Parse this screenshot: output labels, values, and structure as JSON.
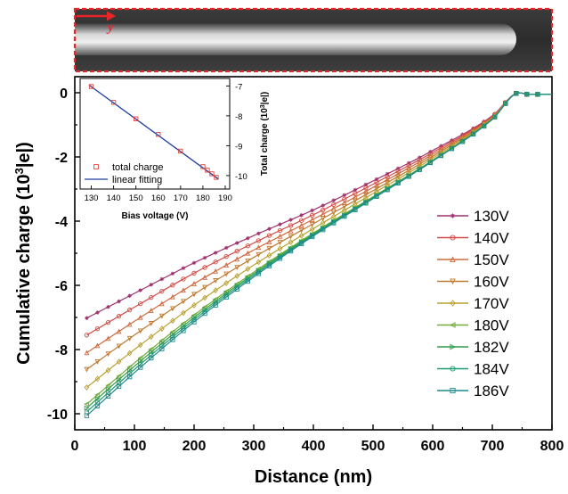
{
  "figure": {
    "image_label": "y",
    "colors": {
      "image_border": "#e8262a",
      "arrow": "#e8262a"
    }
  },
  "chart_data": [
    {
      "type": "line",
      "title": "",
      "xlabel": "Distance (nm)",
      "ylabel": "Cumulative charge (10³|e|)",
      "ylabel_parts": {
        "main": "Cumulative charge (10",
        "sup": "3",
        "tail": "|e|)"
      },
      "xlim": [
        0,
        800
      ],
      "ylim": [
        -10.5,
        0.5
      ],
      "xticks": [
        0,
        100,
        200,
        300,
        400,
        500,
        600,
        700,
        800
      ],
      "yticks": [
        0,
        -2,
        -4,
        -6,
        -8,
        -10
      ],
      "x": [
        20,
        100,
        200,
        300,
        400,
        500,
        600,
        700,
        745,
        760,
        800
      ],
      "grid": false,
      "legend_position": "right",
      "series": [
        {
          "name": "130V",
          "color": "#a0306e",
          "marker": "star",
          "values": [
            -7.02,
            -6.25,
            -5.3,
            -4.45,
            -3.65,
            -2.75,
            -1.8,
            -0.72,
            0.0,
            -0.05,
            -0.05
          ]
        },
        {
          "name": "140V",
          "color": "#d14a45",
          "marker": "circle",
          "values": [
            -7.55,
            -6.68,
            -5.62,
            -4.68,
            -3.8,
            -2.85,
            -1.86,
            -0.74,
            0.0,
            -0.05,
            -0.05
          ]
        },
        {
          "name": "150V",
          "color": "#d2693c",
          "marker": "triangle-up",
          "values": [
            -8.1,
            -7.12,
            -5.95,
            -4.9,
            -3.94,
            -2.95,
            -1.92,
            -0.76,
            0.0,
            -0.05,
            -0.05
          ]
        },
        {
          "name": "160V",
          "color": "#c07a2f",
          "marker": "triangle-down",
          "values": [
            -8.62,
            -7.55,
            -6.28,
            -5.13,
            -4.08,
            -3.05,
            -1.98,
            -0.78,
            0.0,
            -0.05,
            -0.05
          ]
        },
        {
          "name": "170V",
          "color": "#b8a02e",
          "marker": "diamond",
          "values": [
            -9.18,
            -8.0,
            -6.62,
            -5.37,
            -4.23,
            -3.14,
            -2.04,
            -0.8,
            0.0,
            -0.05,
            -0.05
          ]
        },
        {
          "name": "180V",
          "color": "#72ac3a",
          "marker": "triangle-left",
          "values": [
            -9.7,
            -8.42,
            -6.93,
            -5.59,
            -4.37,
            -3.24,
            -2.1,
            -0.82,
            0.0,
            -0.05,
            -0.05
          ]
        },
        {
          "name": "182V",
          "color": "#2f9e4c",
          "marker": "triangle-right",
          "values": [
            -9.82,
            -8.52,
            -7.0,
            -5.64,
            -4.4,
            -3.26,
            -2.11,
            -0.82,
            0.0,
            -0.05,
            -0.05
          ]
        },
        {
          "name": "184V",
          "color": "#1f9a73",
          "marker": "hexagon",
          "values": [
            -9.94,
            -8.62,
            -7.07,
            -5.69,
            -4.43,
            -3.28,
            -2.12,
            -0.83,
            0.0,
            -0.05,
            -0.05
          ]
        },
        {
          "name": "186V",
          "color": "#1c8a8e",
          "marker": "square",
          "values": [
            -10.06,
            -8.72,
            -7.14,
            -5.74,
            -4.46,
            -3.3,
            -2.13,
            -0.83,
            0.0,
            -0.05,
            -0.05
          ]
        }
      ]
    },
    {
      "type": "scatter",
      "title": "",
      "xlabel": "Bias voltage (V)",
      "ylabel": "Total charge (10³|e|)",
      "ylabel_parts": {
        "main": "Total charge (10",
        "sup": "3",
        "tail": "|e|)"
      },
      "xlim": [
        125,
        192
      ],
      "ylim": [
        -10.45,
        -6.75
      ],
      "xticks": [
        130,
        140,
        150,
        160,
        170,
        180,
        190
      ],
      "yticks": [
        -7,
        -8,
        -9,
        -10
      ],
      "grid": false,
      "legend_position": "bottom-left",
      "series": [
        {
          "name": "total charge",
          "color": "#e0403a",
          "marker": "square-open",
          "x": [
            130,
            140,
            150,
            160,
            170,
            180,
            182,
            184,
            186
          ],
          "values": [
            -7.02,
            -7.55,
            -8.1,
            -8.62,
            -9.18,
            -9.7,
            -9.82,
            -9.94,
            -10.06
          ]
        },
        {
          "name": "linear fitting",
          "color": "#1f3fa0",
          "marker": "line",
          "x": [
            129,
            187
          ],
          "values": [
            -6.97,
            -10.12
          ]
        }
      ]
    }
  ]
}
